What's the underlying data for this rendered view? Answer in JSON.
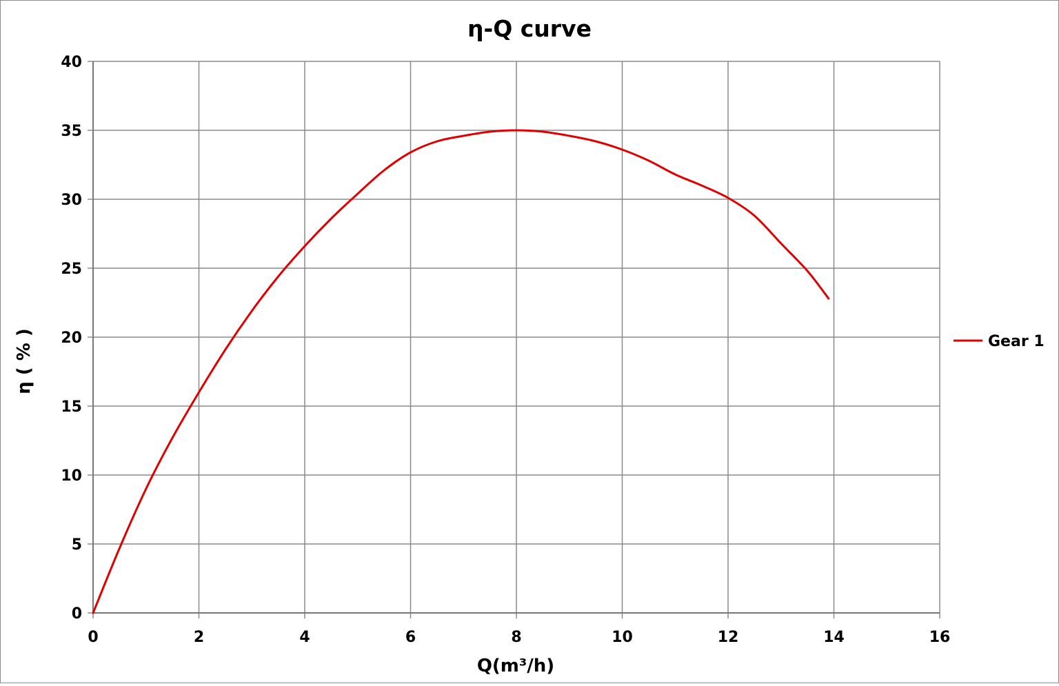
{
  "chart_data": {
    "type": "line",
    "title": "η-Q  curve",
    "xlabel": "Q(m³/h)",
    "ylabel": "η ( % )",
    "xlim": [
      0,
      16
    ],
    "ylim": [
      0,
      40
    ],
    "xticks": [
      0,
      2,
      4,
      6,
      8,
      10,
      12,
      14,
      16
    ],
    "yticks": [
      0,
      5,
      10,
      15,
      20,
      25,
      30,
      35,
      40
    ],
    "grid": true,
    "legend_position": "right",
    "series": [
      {
        "name": "Gear 1",
        "color": "#e00000",
        "x": [
          0,
          0.5,
          1,
          1.5,
          2,
          2.5,
          3,
          3.5,
          4,
          4.5,
          5,
          5.5,
          6,
          6.5,
          7,
          7.5,
          8,
          8.5,
          9,
          9.5,
          10,
          10.5,
          11,
          11.5,
          12,
          12.5,
          13,
          13.5,
          13.9
        ],
        "y": [
          0,
          4.7,
          9.0,
          12.7,
          16.0,
          19.1,
          21.9,
          24.4,
          26.6,
          28.6,
          30.4,
          32.1,
          33.4,
          34.2,
          34.6,
          34.9,
          35.0,
          34.9,
          34.6,
          34.2,
          33.6,
          32.8,
          31.8,
          31.0,
          30.1,
          28.8,
          26.8,
          24.8,
          22.8
        ]
      }
    ]
  }
}
